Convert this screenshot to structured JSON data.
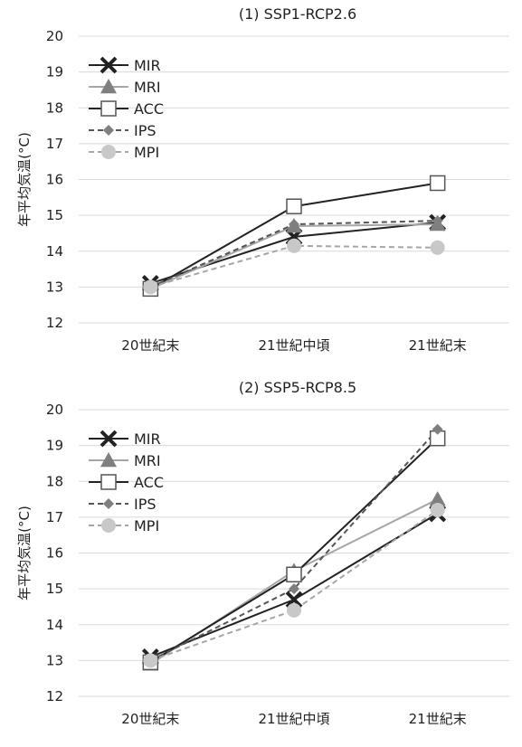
{
  "chart_data": [
    {
      "type": "line",
      "title": "(1) SSP1-RCP2.6",
      "xlabel": "",
      "ylabel": "年平均気温(°C)",
      "categories": [
        "20世紀末",
        "21世紀中頃",
        "21世紀末"
      ],
      "ylim": [
        12,
        20
      ],
      "yticks": [
        12,
        13,
        14,
        15,
        16,
        17,
        18,
        19,
        20
      ],
      "grid": true,
      "legend": "top-left",
      "series": [
        {
          "name": "MIR",
          "values": [
            13.1,
            14.4,
            14.8
          ],
          "color": "#222222",
          "dash": "solid",
          "marker": "x"
        },
        {
          "name": "MRI",
          "values": [
            12.95,
            14.7,
            14.75
          ],
          "color": "#a6a6a6",
          "dash": "solid",
          "marker": "triangle"
        },
        {
          "name": "ACC",
          "values": [
            12.95,
            15.25,
            15.9
          ],
          "color": "#222222",
          "dash": "solid",
          "marker": "square-open"
        },
        {
          "name": "IPS",
          "values": [
            13.0,
            14.75,
            14.85
          ],
          "color": "#555555",
          "dash": "dashed",
          "marker": "diamond"
        },
        {
          "name": "MPI",
          "values": [
            13.0,
            14.15,
            14.1
          ],
          "color": "#a6a6a6",
          "dash": "dashed",
          "marker": "circle"
        }
      ]
    },
    {
      "type": "line",
      "title": "(2) SSP5-RCP8.5",
      "xlabel": "",
      "ylabel": "年平均気温(°C)",
      "categories": [
        "20世紀末",
        "21世紀中頃",
        "21世紀末"
      ],
      "ylim": [
        12,
        20
      ],
      "yticks": [
        12,
        13,
        14,
        15,
        16,
        17,
        18,
        19,
        20
      ],
      "grid": true,
      "legend": "top-left",
      "series": [
        {
          "name": "MIR",
          "values": [
            13.1,
            14.7,
            17.1
          ],
          "color": "#222222",
          "dash": "solid",
          "marker": "x"
        },
        {
          "name": "MRI",
          "values": [
            12.9,
            15.5,
            17.5
          ],
          "color": "#a6a6a6",
          "dash": "solid",
          "marker": "triangle"
        },
        {
          "name": "ACC",
          "values": [
            12.95,
            15.4,
            19.2
          ],
          "color": "#222222",
          "dash": "solid",
          "marker": "square-open"
        },
        {
          "name": "IPS",
          "values": [
            13.0,
            15.0,
            19.45
          ],
          "color": "#555555",
          "dash": "dashed",
          "marker": "diamond"
        },
        {
          "name": "MPI",
          "values": [
            13.0,
            14.4,
            17.2
          ],
          "color": "#a6a6a6",
          "dash": "dashed",
          "marker": "circle"
        }
      ]
    }
  ]
}
